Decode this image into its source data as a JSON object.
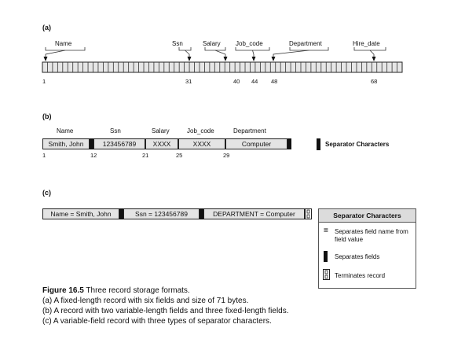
{
  "part_a": {
    "label": "(a)",
    "fields": [
      "Name",
      "Ssn",
      "Salary",
      "Job_code",
      "Department",
      "Hire_date"
    ],
    "positions": [
      "1",
      "31",
      "40",
      "44",
      "48",
      "68"
    ],
    "record_length": 71
  },
  "part_b": {
    "label": "(b)",
    "headers": [
      "Name",
      "Ssn",
      "Salary",
      "Job_code",
      "Department"
    ],
    "values": [
      "Smith, John",
      "123456789",
      "XXXX",
      "XXXX",
      "Computer"
    ],
    "positions": [
      "1",
      "12",
      "21",
      "25",
      "29"
    ],
    "legend": "Separator Characters"
  },
  "part_c": {
    "label": "(c)",
    "segments": [
      "Name = Smith, John",
      "Ssn = 123456789",
      "DEPARTMENT = Computer"
    ],
    "legend": {
      "title": "Separator Characters",
      "items": [
        {
          "symbol": "=",
          "text": "Separates field name from field value"
        },
        {
          "symbol": "bar",
          "text": "Separates fields"
        },
        {
          "symbol": "terminator",
          "text": "Terminates record"
        }
      ]
    }
  },
  "caption": {
    "title_bold": "Figure 16.5",
    "title_rest": "Three record storage formats.",
    "lines": [
      "(a)   A fixed-length record with six fields and size of 71 bytes.",
      "(b)   A record with two variable-length fields and three fixed-length fields.",
      "(c)   A variable-field record with three types of separator characters."
    ]
  }
}
